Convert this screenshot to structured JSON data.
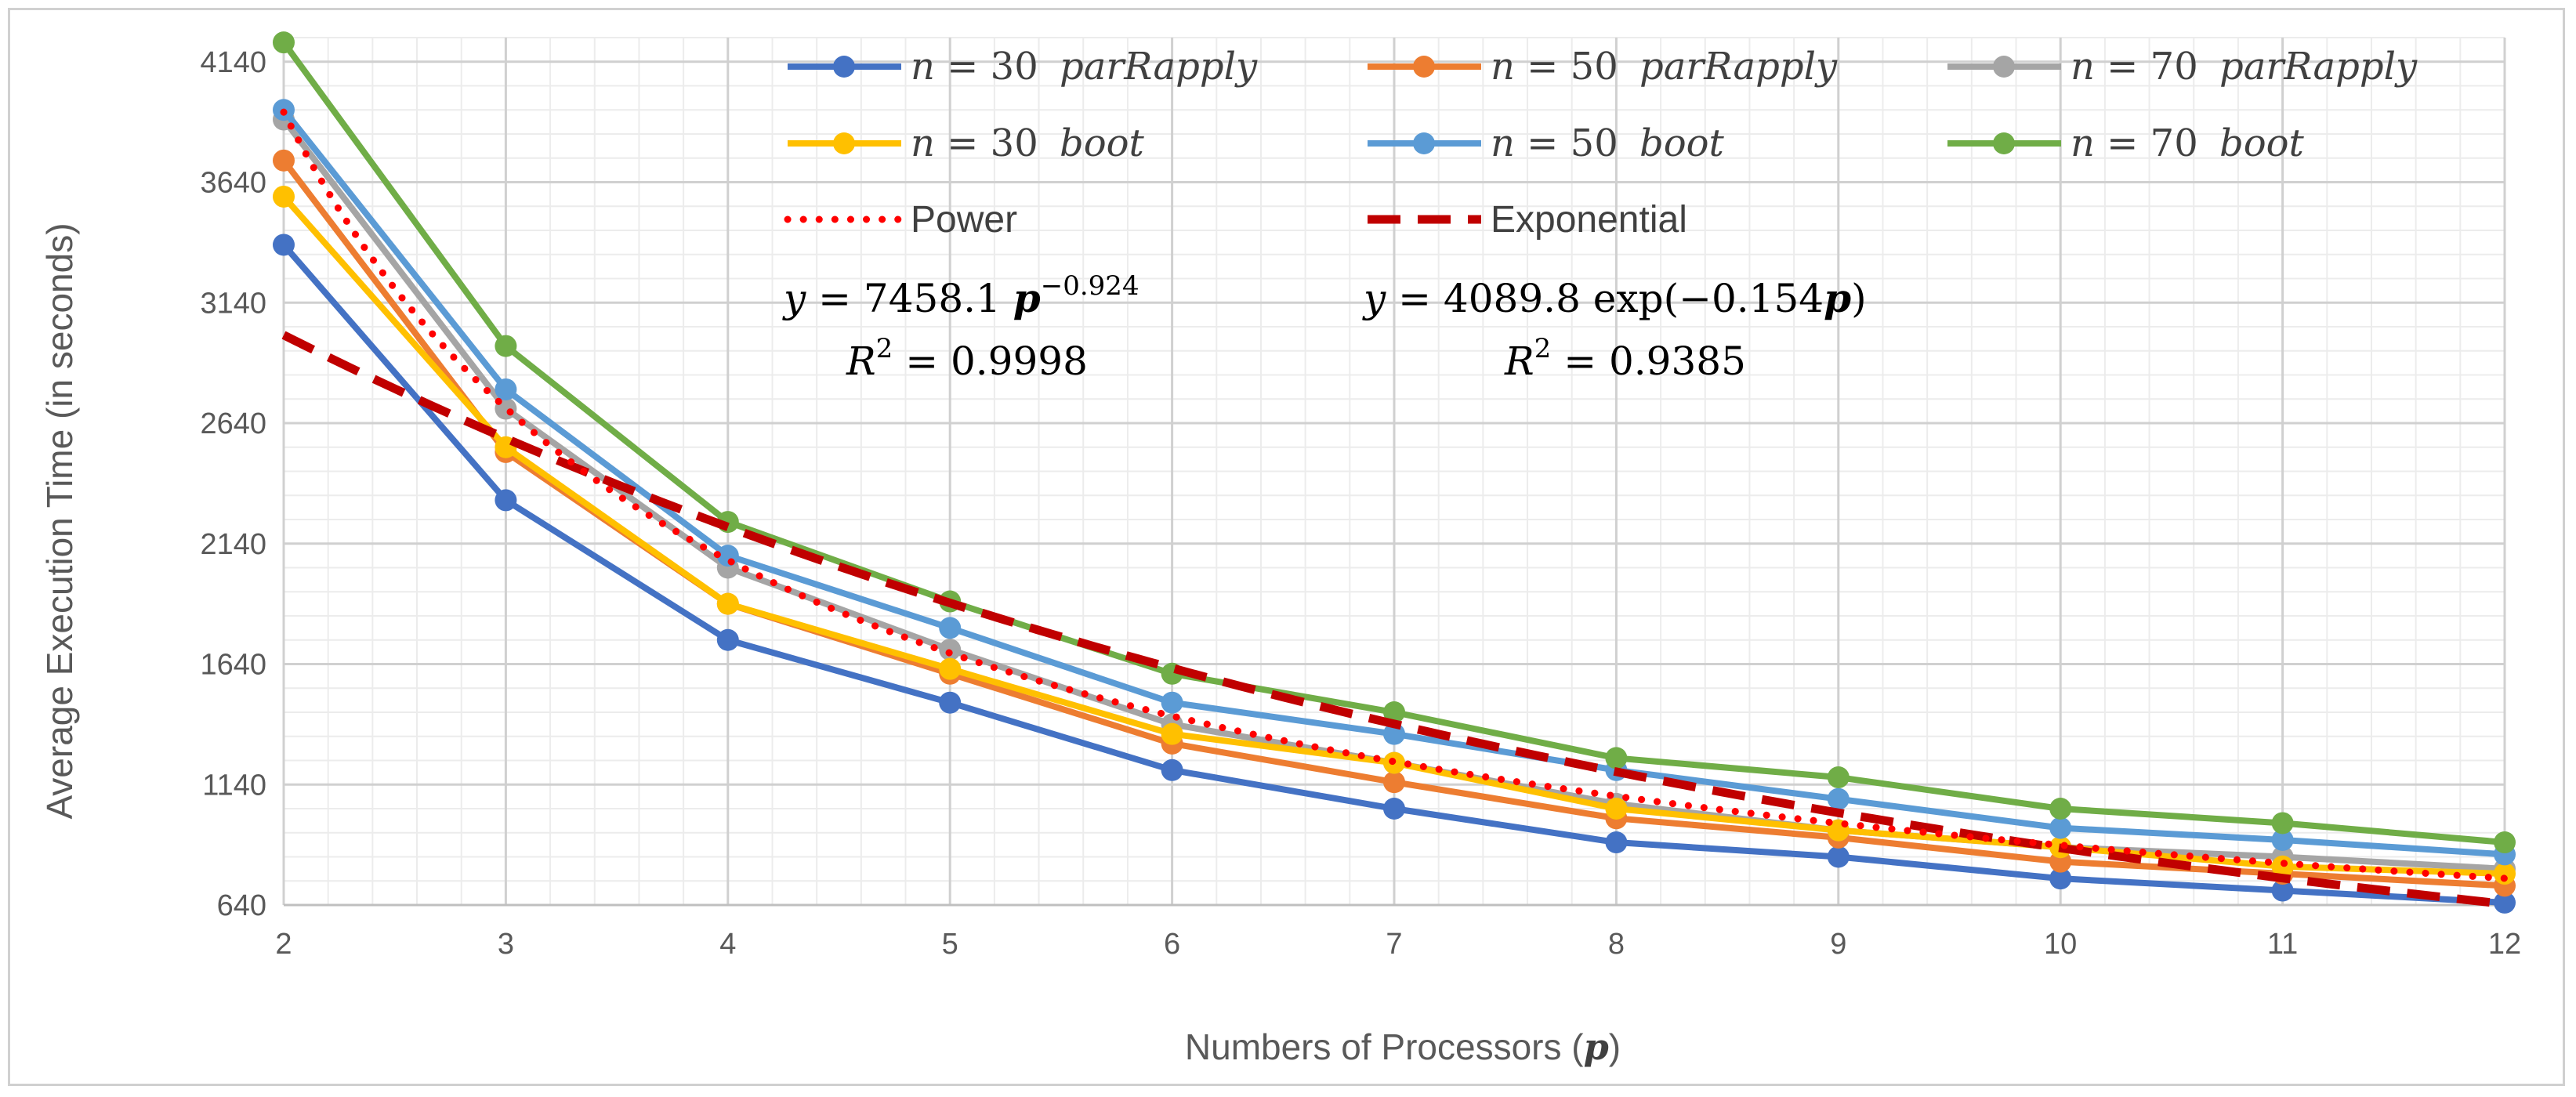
{
  "chart_data": {
    "type": "line",
    "title": "",
    "xlabel": "Numbers of Processors (p)",
    "ylabel": "Average Execution Time (in seconds)",
    "x": [
      2,
      3,
      4,
      5,
      6,
      7,
      8,
      9,
      10,
      11,
      12
    ],
    "xlim": [
      2,
      12
    ],
    "ylim": [
      640,
      4240
    ],
    "yticks": [
      640,
      1140,
      1640,
      2140,
      2640,
      3140,
      3640,
      4140
    ],
    "grid": true,
    "series": [
      {
        "name": "n = 30 parRapply",
        "color": "#4472c4",
        "values": [
          3380,
          2320,
          1740,
          1480,
          1200,
          1040,
          900,
          840,
          750,
          700,
          650
        ]
      },
      {
        "name": "n = 50 parRapply",
        "color": "#ed7d31",
        "values": [
          3730,
          2520,
          1890,
          1600,
          1310,
          1150,
          1000,
          920,
          820,
          770,
          720
        ]
      },
      {
        "name": "n = 70 parRapply",
        "color": "#a5a5a5",
        "values": [
          3900,
          2700,
          2040,
          1700,
          1390,
          1230,
          1060,
          950,
          880,
          840,
          790
        ]
      },
      {
        "name": "n = 30 boot",
        "color": "#ffc000",
        "values": [
          3580,
          2540,
          1890,
          1620,
          1350,
          1230,
          1040,
          950,
          880,
          800,
          770
        ]
      },
      {
        "name": "n = 50 boot",
        "color": "#5b9bd5",
        "values": [
          3940,
          2780,
          2090,
          1790,
          1480,
          1350,
          1200,
          1080,
          960,
          910,
          850
        ]
      },
      {
        "name": "n = 70 boot",
        "color": "#70ad47",
        "values": [
          4220,
          2960,
          2230,
          1900,
          1600,
          1440,
          1250,
          1170,
          1040,
          980,
          900
        ]
      }
    ],
    "trendlines": [
      {
        "name": "Power",
        "style": "dotted",
        "color": "#ff0000",
        "equation": "y = 7458.1 p^-0.924",
        "r2": "0.9998",
        "coef": 7458.1,
        "exponent": -0.924
      },
      {
        "name": "Exponential",
        "style": "dashed",
        "color": "#c00000",
        "equation": "y = 4089.8 exp(-0.154p)",
        "r2": "0.9385",
        "coef": 4089.8,
        "rate": -0.154
      }
    ],
    "legend_position": "top-right"
  },
  "legend": {
    "s1_n": "n",
    "s1_eq": " = 30 ",
    "s1_lbl": "parRapply",
    "s2_n": "n",
    "s2_eq": " = 50 ",
    "s2_lbl": "parRapply",
    "s3_n": "n",
    "s3_eq": " = 70 ",
    "s3_lbl": "parRapply",
    "s4_n": "n",
    "s4_eq": " = 30 ",
    "s4_lbl": "boot",
    "s5_n": "n",
    "s5_eq": " = 50 ",
    "s5_lbl": "boot",
    "s6_n": "n",
    "s6_eq": " = 70 ",
    "s6_lbl": "boot",
    "power": "Power",
    "exponential": "Exponential"
  },
  "equations": {
    "power_y": "y",
    "power_rhs": " = 7458.1 ",
    "power_p": "p",
    "power_exp": "−0.924",
    "power_r2_label": "R",
    "power_r2_sup": "2",
    "power_r2_val": " = 0.9998",
    "exp_y": "y",
    "exp_rhs": " = 4089.8 exp(−0.154",
    "exp_p": "p",
    "exp_close": ")",
    "exp_r2_label": "R",
    "exp_r2_sup": "2",
    "exp_r2_val": " = 0.9385"
  },
  "axes": {
    "ylabel": "Average Execution Time (in seconds)",
    "xlabel_main": "Numbers of Processors (",
    "xlabel_var": "p",
    "xlabel_close": ")"
  }
}
